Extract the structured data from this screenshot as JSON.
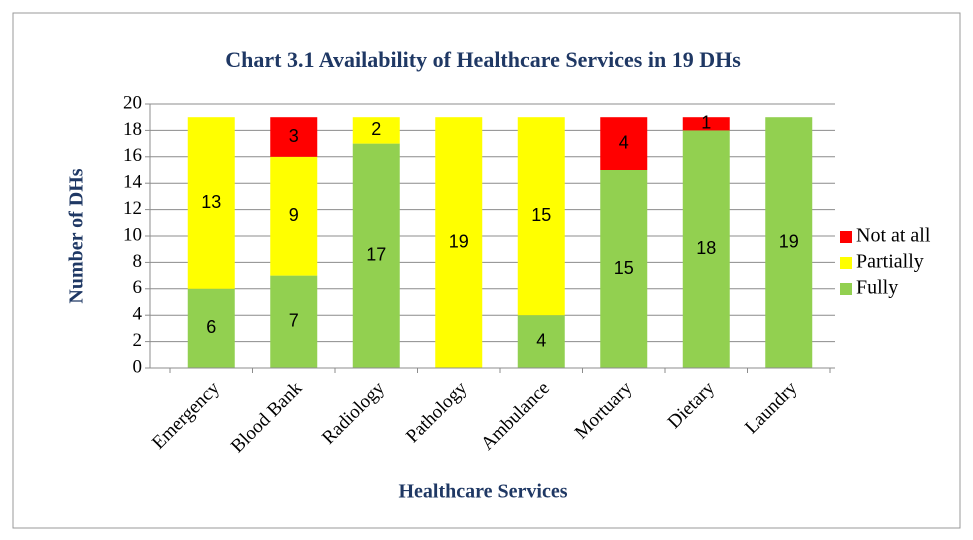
{
  "chart_data": {
    "type": "stacked_bar",
    "title": "Chart 3.1 Availability of Healthcare Services in 19 DHs",
    "x_label": "Healthcare Services",
    "y_label": "Number of DHs",
    "categories": [
      "Emergency",
      "Blood Bank",
      "Radiology",
      "Pathology",
      "Ambulance",
      "Mortuary",
      "Dietary",
      "Laundry"
    ],
    "series": [
      {
        "name": "Fully",
        "color": "#92D050",
        "values": [
          6,
          7,
          17,
          0,
          4,
          15,
          18,
          19
        ]
      },
      {
        "name": "Partially",
        "color": "#FFFF00",
        "values": [
          13,
          9,
          2,
          19,
          15,
          0,
          0,
          0
        ]
      },
      {
        "name": "Not at all",
        "color": "#FF0000",
        "values": [
          0,
          3,
          0,
          0,
          0,
          4,
          1,
          0
        ]
      }
    ],
    "ylim": [
      0,
      20
    ],
    "yticks": [
      0,
      2,
      4,
      6,
      8,
      10,
      12,
      14,
      16,
      18,
      20
    ],
    "grid": true,
    "legend": "right"
  }
}
